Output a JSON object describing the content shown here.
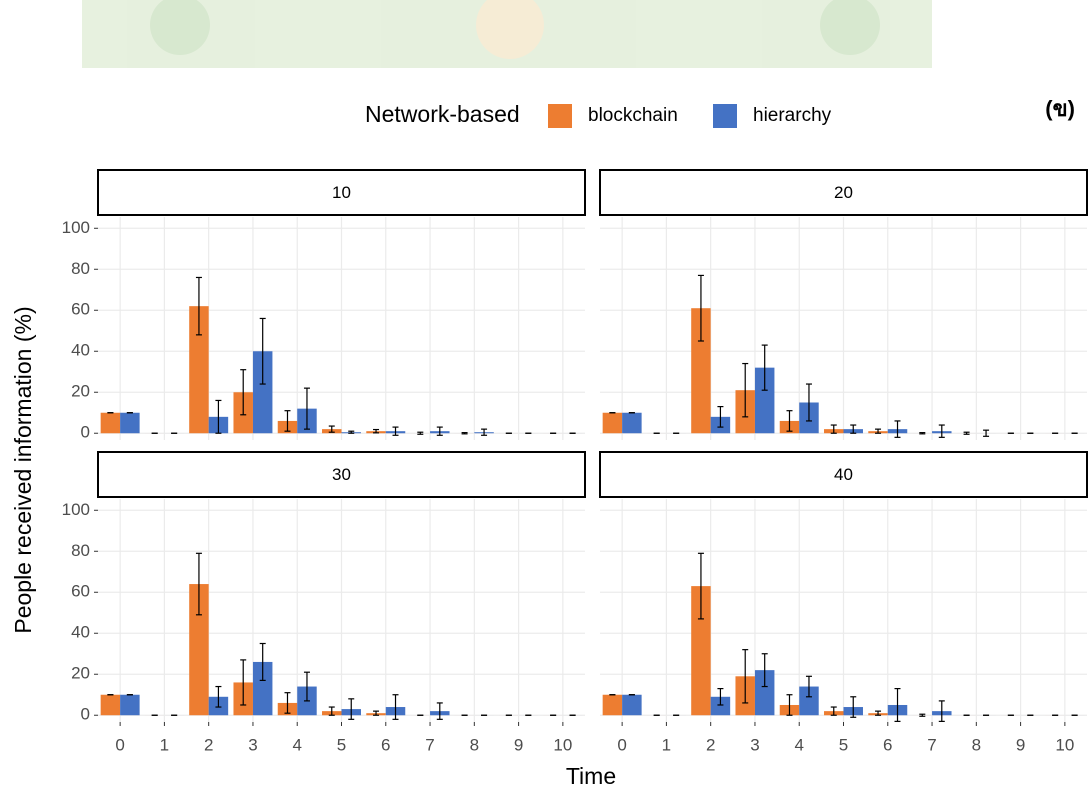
{
  "chart_data": {
    "type": "bar",
    "annotation": "(ข)",
    "legend_title": "Network-based",
    "xlabel": "Time",
    "ylabel": "People received information (%)",
    "categories": [
      "0",
      "1",
      "2",
      "3",
      "4",
      "5",
      "6",
      "7",
      "8",
      "9",
      "10"
    ],
    "ylim": [
      -3.3,
      105.5
    ],
    "yticks": [
      0,
      20,
      40,
      60,
      80,
      100
    ],
    "grid": true,
    "series": [
      {
        "name": "blockchain",
        "color": "#ed7d31"
      },
      {
        "name": "hierarchy",
        "color": "#4472c4"
      }
    ],
    "facets": [
      {
        "label": "10",
        "series": [
          {
            "values": [
              10,
              0,
              62,
              20,
              6,
              2,
              1,
              0,
              0,
              0,
              0
            ],
            "errors": [
              0,
              0,
              14,
              11,
              5,
              1.5,
              0.8,
              0.5,
              0.3,
              0,
              0
            ]
          },
          {
            "values": [
              10,
              0,
              8,
              40,
              12,
              0.5,
              1,
              1,
              0.5,
              0,
              0
            ],
            "errors": [
              0,
              0,
              8,
              16,
              10,
              0.5,
              2,
              2,
              1.5,
              0,
              0
            ]
          }
        ]
      },
      {
        "label": "20",
        "series": [
          {
            "values": [
              10,
              0,
              61,
              21,
              6,
              2,
              1,
              0,
              0,
              0,
              0
            ],
            "errors": [
              0,
              0,
              16,
              13,
              5,
              2,
              1,
              0.3,
              0.5,
              0,
              0
            ]
          },
          {
            "values": [
              10,
              0,
              8,
              32,
              15,
              2,
              2,
              1,
              0,
              0,
              0
            ],
            "errors": [
              0,
              0,
              5,
              11,
              9,
              2,
              4,
              3,
              1.5,
              0,
              0
            ]
          }
        ]
      },
      {
        "label": "30",
        "series": [
          {
            "values": [
              10,
              0,
              64,
              16,
              6,
              2,
              1,
              0,
              0,
              0,
              0
            ],
            "errors": [
              0,
              0,
              15,
              11,
              5,
              2,
              1,
              0,
              0,
              0,
              0
            ]
          },
          {
            "values": [
              10,
              0,
              9,
              26,
              14,
              3,
              4,
              2,
              0,
              0,
              0
            ],
            "errors": [
              0,
              0,
              5,
              9,
              7,
              5,
              6,
              4,
              0,
              0,
              0
            ]
          }
        ]
      },
      {
        "label": "40",
        "series": [
          {
            "values": [
              10,
              0,
              63,
              19,
              5,
              2,
              1,
              0,
              0,
              0,
              0
            ],
            "errors": [
              0,
              0,
              16,
              13,
              5,
              2,
              1,
              0.5,
              0,
              0,
              0
            ]
          },
          {
            "values": [
              10,
              0,
              9,
              22,
              14,
              4,
              5,
              2,
              0,
              0,
              0
            ],
            "errors": [
              0,
              0,
              4,
              8,
              5,
              5,
              8,
              5,
              0,
              0,
              0
            ]
          }
        ]
      }
    ]
  }
}
